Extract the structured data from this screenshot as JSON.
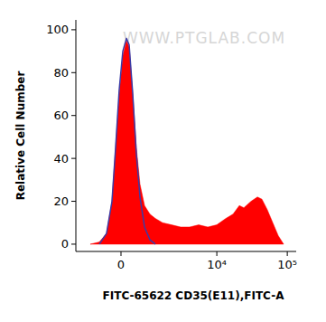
{
  "chart_data": {
    "type": "area",
    "x_label": "FITC-65622 CD35(E11),FITC-A",
    "y_label": "Relative Cell Number",
    "annotations": [
      "WWW.PTGLAB.COM"
    ],
    "log": "x",
    "xlim": [
      -1815,
      133800
    ],
    "ylim": [
      -3.4,
      104.6
    ],
    "xticks": [
      0,
      {
        "value": 10000,
        "label": "10⁴"
      },
      {
        "value": 100000,
        "label": "10⁵"
      }
    ],
    "yticks": [
      0,
      20,
      40,
      60,
      80,
      100
    ],
    "series": [
      {
        "color": "#ff0000",
        "x": [
          -1035,
          -673,
          -430,
          -262,
          -156,
          -52,
          52,
          156,
          236,
          345,
          458,
          579,
          742,
          958,
          1203,
          1589,
          2201,
          3012,
          4078,
          5508,
          7428,
          9980,
          13418,
          16987,
          20873,
          24205,
          30660,
          37702,
          43675,
          52182,
          62267,
          74370,
          88752
        ],
        "values": [
          0,
          1,
          5,
          20,
          45,
          70,
          88,
          95,
          92,
          70,
          45,
          28,
          18,
          14,
          12,
          10,
          9,
          8,
          8,
          9,
          8,
          9,
          12,
          14,
          18,
          17,
          20,
          22,
          21,
          16,
          10,
          4,
          0
        ]
      },
      {
        "color": "#3b3ba6",
        "type": "line",
        "x": [
          -673,
          -430,
          -262,
          -156,
          -52,
          52,
          156,
          236,
          345,
          458,
          579,
          742,
          958,
          1203
        ],
        "values": [
          0,
          5,
          20,
          45,
          72,
          90,
          96,
          93,
          70,
          42,
          22,
          8,
          2,
          0
        ]
      }
    ]
  }
}
